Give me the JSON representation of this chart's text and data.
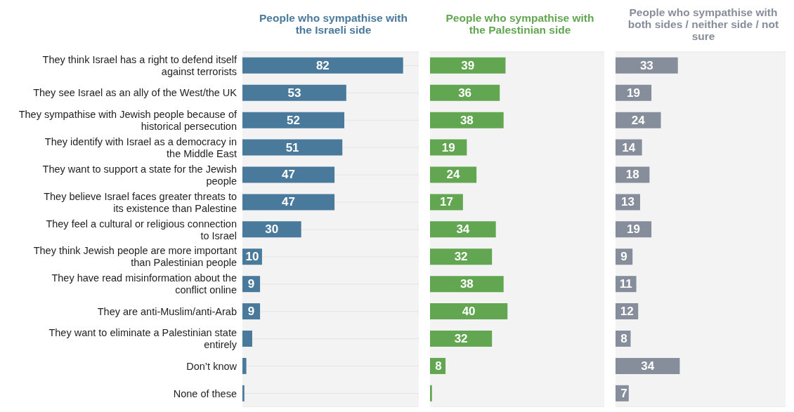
{
  "chart_data": [
    {
      "type": "bar",
      "orientation": "horizontal",
      "title": "People who sympathise with the Israeli side",
      "color": "#4a7a9b",
      "grid": "y",
      "tick_labels": "y",
      "xlim": [
        0,
        90
      ],
      "categories": [
        "They think Israel has a right to defend itself against terrorists",
        "They see Israel as an ally of the West/the UK",
        "They sympathise with Jewish people because of historical persecution",
        "They identify with Israel as a democracy in the Middle East",
        "They want to support a state for the Jewish people",
        "They believe Israel faces greater threats to its existence than Palestine",
        "They feel a cultural or religious connection to Israel",
        "They think Jewish people are more important than Palestinian people",
        "They have read misinformation about the conflict online",
        "They are anti-Muslim/anti-Arab",
        "They want to eliminate a Palestinian state entirely",
        "Don’t know",
        "None of these"
      ],
      "values": [
        82,
        53,
        52,
        51,
        47,
        47,
        30,
        10,
        9,
        9,
        5,
        2,
        1
      ],
      "value_labels": [
        "82",
        "53",
        "52",
        "51",
        "47",
        "47",
        "30",
        "10",
        "9",
        "9",
        null,
        null,
        null
      ]
    },
    {
      "type": "bar",
      "orientation": "horizontal",
      "title": "People who sympathise with the Palestinian side",
      "color": "#62a651",
      "grid": "y",
      "tick_labels": false,
      "xlim": [
        0,
        90
      ],
      "categories": [
        null,
        null,
        null,
        null,
        null,
        null,
        null,
        null,
        null,
        null,
        null,
        null,
        null
      ],
      "values": [
        39,
        36,
        38,
        19,
        24,
        17,
        34,
        32,
        38,
        40,
        32,
        8,
        1
      ],
      "value_labels": [
        "39",
        "36",
        "38",
        "19",
        "24",
        "17",
        "34",
        "32",
        "38",
        "40",
        "32",
        "8",
        null
      ]
    },
    {
      "type": "bar",
      "orientation": "horizontal",
      "title": "People who sympathise with both sides / neither side / not sure",
      "color": "#878e9b",
      "grid": "y",
      "tick_labels": false,
      "xlim": [
        0,
        90
      ],
      "categories": [
        null,
        null,
        null,
        null,
        null,
        null,
        null,
        null,
        null,
        null,
        null,
        null,
        null
      ],
      "values": [
        33,
        19,
        24,
        14,
        18,
        13,
        19,
        9,
        11,
        12,
        8,
        34,
        7
      ],
      "value_labels": [
        "33",
        "19",
        "24",
        "14",
        "18",
        "13",
        "19",
        "9",
        "11",
        "12",
        "8",
        "34",
        "7"
      ]
    }
  ]
}
